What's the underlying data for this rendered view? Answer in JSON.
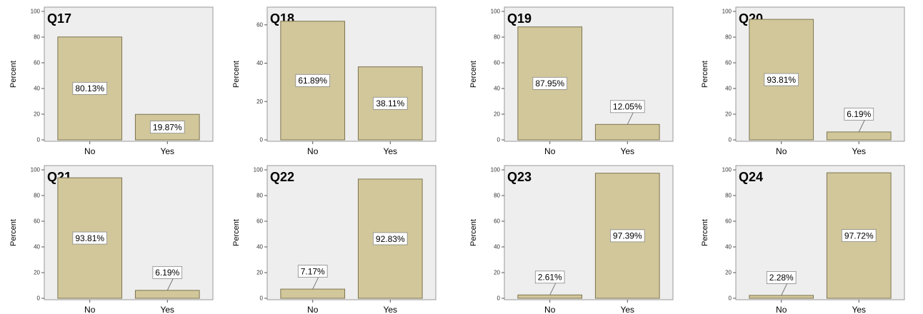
{
  "colors": {
    "bar": "#d1c79a",
    "bar_stroke": "#7d7450",
    "plot_bg": "#eeeeee",
    "frame": "#9a9a9a",
    "label_box": "#ffffff"
  },
  "chart_data": [
    {
      "type": "bar",
      "title": "Q17",
      "ylabel": "Percent",
      "categories": [
        "No",
        "Yes"
      ],
      "values": [
        80.13,
        19.87
      ],
      "labels": [
        "80.13%",
        "19.87%"
      ],
      "ylim": [
        0,
        100
      ],
      "yticks": [
        0,
        20,
        40,
        60,
        80,
        100
      ]
    },
    {
      "type": "bar",
      "title": "Q18",
      "ylabel": "Percent",
      "categories": [
        "No",
        "Yes"
      ],
      "values": [
        61.89,
        38.11
      ],
      "labels": [
        "61.89%",
        "38.11%"
      ],
      "ylim": [
        0,
        67
      ],
      "yticks": [
        0,
        20,
        40,
        60
      ]
    },
    {
      "type": "bar",
      "title": "Q19",
      "ylabel": "Percent",
      "categories": [
        "No",
        "Yes"
      ],
      "values": [
        87.95,
        12.05
      ],
      "labels": [
        "87.95%",
        "12.05%"
      ],
      "ylim": [
        0,
        100
      ],
      "yticks": [
        0,
        20,
        40,
        60,
        80,
        100
      ]
    },
    {
      "type": "bar",
      "title": "Q20",
      "ylabel": "Percent",
      "categories": [
        "No",
        "Yes"
      ],
      "values": [
        93.81,
        6.19
      ],
      "labels": [
        "93.81%",
        "6.19%"
      ],
      "ylim": [
        0,
        100
      ],
      "yticks": [
        0,
        20,
        40,
        60,
        80,
        100
      ]
    },
    {
      "type": "bar",
      "title": "Q21",
      "ylabel": "Percent",
      "categories": [
        "No",
        "Yes"
      ],
      "values": [
        93.81,
        6.19
      ],
      "labels": [
        "93.81%",
        "6.19%"
      ],
      "ylim": [
        0,
        100
      ],
      "yticks": [
        0,
        20,
        40,
        60,
        80,
        100
      ]
    },
    {
      "type": "bar",
      "title": "Q22",
      "ylabel": "Percent",
      "categories": [
        "No",
        "Yes"
      ],
      "values": [
        7.17,
        92.83
      ],
      "labels": [
        "7.17%",
        "92.83%"
      ],
      "ylim": [
        0,
        100
      ],
      "yticks": [
        0,
        20,
        40,
        60,
        80,
        100
      ]
    },
    {
      "type": "bar",
      "title": "Q23",
      "ylabel": "Percent",
      "categories": [
        "No",
        "Yes"
      ],
      "values": [
        2.61,
        97.39
      ],
      "labels": [
        "2.61%",
        "97.39%"
      ],
      "ylim": [
        0,
        100
      ],
      "yticks": [
        0,
        20,
        40,
        60,
        80,
        100
      ]
    },
    {
      "type": "bar",
      "title": "Q24",
      "ylabel": "Percent",
      "categories": [
        "No",
        "Yes"
      ],
      "values": [
        2.28,
        97.72
      ],
      "labels": [
        "2.28%",
        "97.72%"
      ],
      "ylim": [
        0,
        100
      ],
      "yticks": [
        0,
        20,
        40,
        60,
        80,
        100
      ]
    }
  ]
}
